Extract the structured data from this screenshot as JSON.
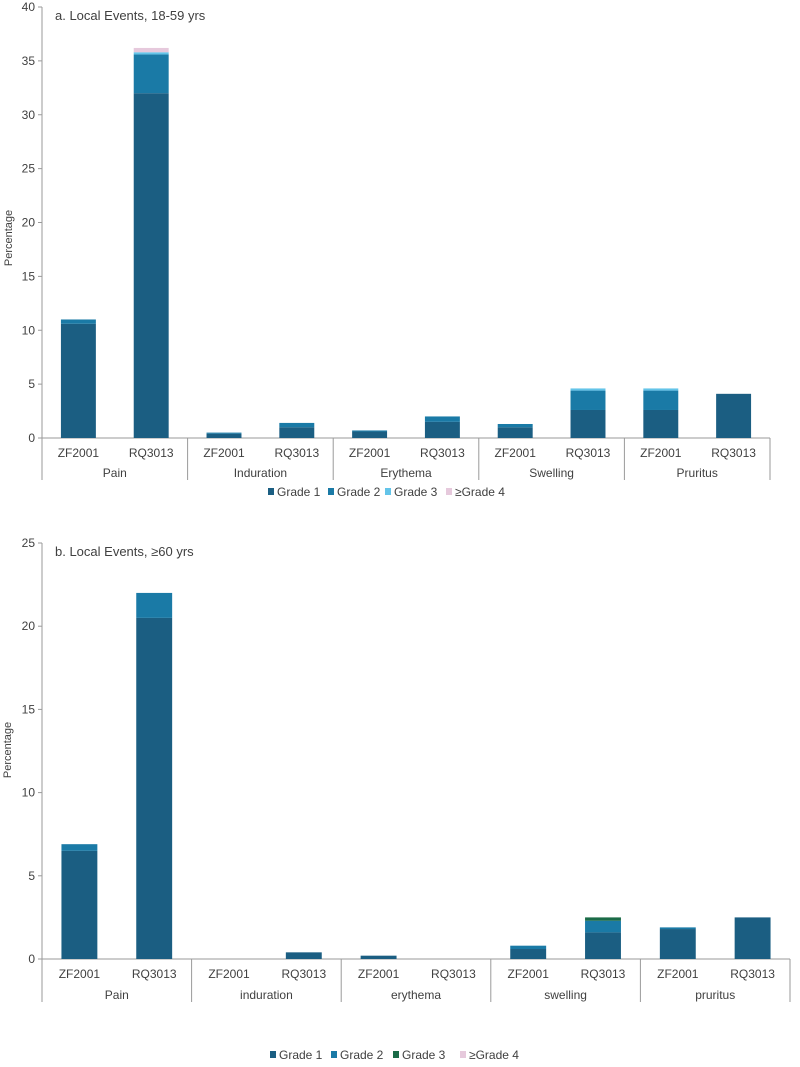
{
  "colors": {
    "grade1": "#1b5e82",
    "grade2": "#1a7aa6",
    "grade3a": "#63c4e9",
    "grade3b": "#1a6b47",
    "grade4": "#e6c9dc",
    "axis": "#9a9a9a",
    "text": "#404040"
  },
  "chart_data": [
    {
      "type": "bar",
      "stacked": true,
      "title": "a. Local Events, 18-59 yrs",
      "ylabel": "Percentage",
      "ylim": [
        0,
        40
      ],
      "yticks": [
        0,
        5,
        10,
        15,
        20,
        25,
        30,
        35,
        40
      ],
      "groups": [
        "Pain",
        "Induration",
        "Erythema",
        "Swelling",
        "Pruritus"
      ],
      "categories": [
        "ZF2001",
        "RQ3013",
        "ZF2001",
        "RQ3013",
        "ZF2001",
        "RQ3013",
        "ZF2001",
        "RQ3013",
        "ZF2001",
        "RQ3013"
      ],
      "legend": [
        "Grade 1",
        "Grade 2",
        "Grade 3",
        "≥Grade 4"
      ],
      "series": [
        {
          "name": "Grade 1",
          "color_key": "grade1",
          "values": [
            10.6,
            32.0,
            0.4,
            1.0,
            0.6,
            1.5,
            1.0,
            2.6,
            2.6,
            4.1
          ]
        },
        {
          "name": "Grade 2",
          "color_key": "grade2",
          "values": [
            0.4,
            3.6,
            0.1,
            0.4,
            0.1,
            0.5,
            0.3,
            1.8,
            1.8,
            0.0
          ]
        },
        {
          "name": "Grade 3",
          "color_key": "grade3a",
          "values": [
            0.0,
            0.2,
            0.0,
            0.0,
            0.0,
            0.0,
            0.0,
            0.2,
            0.2,
            0.0
          ]
        },
        {
          "name": "≥Grade 4",
          "color_key": "grade4",
          "values": [
            0.0,
            0.4,
            0.0,
            0.0,
            0.0,
            0.0,
            0.0,
            0.0,
            0.0,
            0.0
          ]
        }
      ]
    },
    {
      "type": "bar",
      "stacked": true,
      "title": "b. Local Events, ≥60 yrs",
      "ylabel": "Percentage",
      "ylim": [
        0,
        25
      ],
      "yticks": [
        0,
        5,
        10,
        15,
        20,
        25
      ],
      "groups": [
        "Pain",
        "induration",
        "erythema",
        "swelling",
        "pruritus"
      ],
      "categories": [
        "ZF2001",
        "RQ3013",
        "ZF2001",
        "RQ3013",
        "ZF2001",
        "RQ3013",
        "ZF2001",
        "RQ3013",
        "ZF2001",
        "RQ3013"
      ],
      "legend": [
        "Grade 1",
        "Grade 2",
        "Grade 3",
        "≥Grade 4"
      ],
      "series": [
        {
          "name": "Grade 1",
          "color_key": "grade1",
          "values": [
            6.5,
            20.5,
            0.0,
            0.4,
            0.2,
            0.0,
            0.6,
            1.6,
            1.8,
            2.5
          ]
        },
        {
          "name": "Grade 2",
          "color_key": "grade2",
          "values": [
            0.4,
            1.5,
            0.0,
            0.0,
            0.0,
            0.0,
            0.2,
            0.7,
            0.1,
            0.0
          ]
        },
        {
          "name": "Grade 3",
          "color_key": "grade3b",
          "values": [
            0.0,
            0.0,
            0.0,
            0.0,
            0.0,
            0.0,
            0.0,
            0.2,
            0.0,
            0.0
          ]
        },
        {
          "name": "≥Grade 4",
          "color_key": "grade4",
          "values": [
            0.0,
            0.0,
            0.0,
            0.0,
            0.0,
            0.0,
            0.0,
            0.0,
            0.0,
            0.0
          ]
        }
      ]
    }
  ]
}
